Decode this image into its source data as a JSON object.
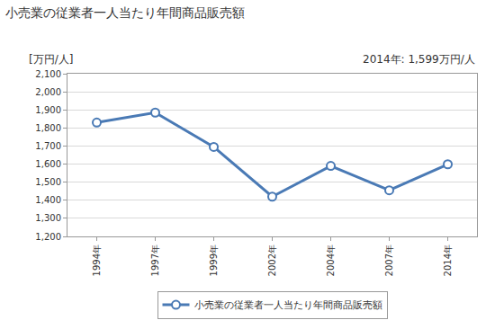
{
  "chart_data": {
    "type": "line",
    "title": "小売業の従業者一人当たり年間商品販売額",
    "y_label": "[万円/人]",
    "annotations": [
      "2014年: 1,599万円/人"
    ],
    "categories": [
      "1994年",
      "1997年",
      "1999年",
      "2002年",
      "2004年",
      "2007年",
      "2014年"
    ],
    "series": [
      {
        "name": "小売業の従業者一人当たり年間商品販売額",
        "color": "#4a7ab5",
        "values": [
          1830,
          1885,
          1695,
          1420,
          1590,
          1455,
          1599
        ]
      }
    ],
    "ylim": [
      1200,
      2100
    ],
    "yticks": [
      {
        "value": 1200,
        "label": "1,200"
      },
      {
        "value": 1300,
        "label": "1,300"
      },
      {
        "value": 1400,
        "label": "1,400"
      },
      {
        "value": 1500,
        "label": "1,500"
      },
      {
        "value": 1600,
        "label": "1,600"
      },
      {
        "value": 1700,
        "label": "1,700"
      },
      {
        "value": 1800,
        "label": "1,800"
      },
      {
        "value": 1900,
        "label": "1,900"
      },
      {
        "value": 2000,
        "label": "2,000"
      },
      {
        "value": 2100,
        "label": "2,100"
      }
    ],
    "grid": true,
    "legend": "bottom",
    "marker": "circle",
    "line_style": "solid"
  }
}
